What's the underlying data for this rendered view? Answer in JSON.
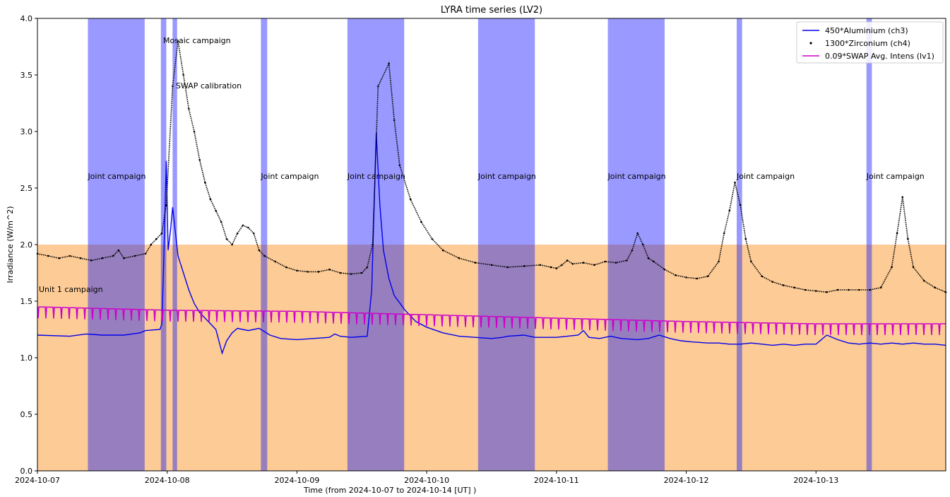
{
  "chart_data": {
    "type": "line",
    "title": "LYRA time series (LV2)",
    "xlabel": "Time (from 2024-10-07 to 2024-10-14 [UT] )",
    "ylabel": "Irradiance (W/m^2)",
    "xlim": [
      "2024-10-07 00:00",
      "2024-10-14 00:00"
    ],
    "ylim": [
      0.0,
      4.0
    ],
    "x_ticks": [
      "2024-10-07",
      "2024-10-08",
      "2024-10-09",
      "2024-10-10",
      "2024-10-11",
      "2024-10-12",
      "2024-10-13"
    ],
    "y_ticks": [
      "0.0",
      "0.5",
      "1.0",
      "1.5",
      "2.0",
      "2.5",
      "3.0",
      "3.5",
      "4.0"
    ],
    "grid": false,
    "legend_position": "top-right",
    "colors": {
      "campaign_band": "#9999ff",
      "unit1_band": "#fdcb95",
      "overlap": "#977fbf",
      "aluminium": "#0000ee",
      "zirconium": "#000000",
      "swap": "#cc00cc"
    },
    "series": [
      {
        "name": "450*Aluminium (ch3)",
        "style": "line",
        "points": [
          [
            "2024-10-07 00:00",
            1.2
          ],
          [
            "2024-10-07 06:00",
            1.19
          ],
          [
            "2024-10-07 09:00",
            1.21
          ],
          [
            "2024-10-07 12:00",
            1.2
          ],
          [
            "2024-10-07 16:00",
            1.2
          ],
          [
            "2024-10-07 19:00",
            1.22
          ],
          [
            "2024-10-07 20:00",
            1.24
          ],
          [
            "2024-10-07 22:40",
            1.25
          ],
          [
            "2024-10-07 23:00",
            1.3
          ],
          [
            "2024-10-07 23:20",
            1.8
          ],
          [
            "2024-10-07 23:50",
            2.74
          ],
          [
            "2024-10-08 00:10",
            1.95
          ],
          [
            "2024-10-08 00:40",
            2.15
          ],
          [
            "2024-10-08 01:00",
            2.33
          ],
          [
            "2024-10-08 02:00",
            1.9
          ],
          [
            "2024-10-08 03:00",
            1.75
          ],
          [
            "2024-10-08 04:00",
            1.6
          ],
          [
            "2024-10-08 05:00",
            1.48
          ],
          [
            "2024-10-08 06:00",
            1.4
          ],
          [
            "2024-10-08 08:00",
            1.3
          ],
          [
            "2024-10-08 09:00",
            1.25
          ],
          [
            "2024-10-08 10:10",
            1.04
          ],
          [
            "2024-10-08 11:00",
            1.15
          ],
          [
            "2024-10-08 12:00",
            1.22
          ],
          [
            "2024-10-08 13:00",
            1.26
          ],
          [
            "2024-10-08 15:00",
            1.24
          ],
          [
            "2024-10-08 17:00",
            1.26
          ],
          [
            "2024-10-08 19:00",
            1.2
          ],
          [
            "2024-10-08 21:00",
            1.17
          ],
          [
            "2024-10-09 00:00",
            1.16
          ],
          [
            "2024-10-09 03:00",
            1.17
          ],
          [
            "2024-10-09 06:00",
            1.18
          ],
          [
            "2024-10-09 07:00",
            1.21
          ],
          [
            "2024-10-09 08:00",
            1.19
          ],
          [
            "2024-10-09 10:00",
            1.18
          ],
          [
            "2024-10-09 13:00",
            1.19
          ],
          [
            "2024-10-09 13:50",
            1.6
          ],
          [
            "2024-10-09 14:40",
            2.99
          ],
          [
            "2024-10-09 15:20",
            2.35
          ],
          [
            "2024-10-09 16:00",
            1.95
          ],
          [
            "2024-10-09 17:00",
            1.7
          ],
          [
            "2024-10-09 18:00",
            1.55
          ],
          [
            "2024-10-09 20:00",
            1.42
          ],
          [
            "2024-10-09 22:00",
            1.32
          ],
          [
            "2024-10-10 00:00",
            1.27
          ],
          [
            "2024-10-10 03:00",
            1.22
          ],
          [
            "2024-10-10 06:00",
            1.19
          ],
          [
            "2024-10-10 09:00",
            1.18
          ],
          [
            "2024-10-10 12:00",
            1.17
          ],
          [
            "2024-10-10 14:00",
            1.18
          ],
          [
            "2024-10-10 15:00",
            1.19
          ],
          [
            "2024-10-10 18:00",
            1.2
          ],
          [
            "2024-10-10 20:00",
            1.18
          ],
          [
            "2024-10-10 22:00",
            1.18
          ],
          [
            "2024-10-11 00:00",
            1.18
          ],
          [
            "2024-10-11 02:00",
            1.19
          ],
          [
            "2024-10-11 04:00",
            1.2
          ],
          [
            "2024-10-11 05:00",
            1.24
          ],
          [
            "2024-10-11 06:00",
            1.18
          ],
          [
            "2024-10-11 08:00",
            1.17
          ],
          [
            "2024-10-11 10:00",
            1.19
          ],
          [
            "2024-10-11 12:00",
            1.17
          ],
          [
            "2024-10-11 15:00",
            1.16
          ],
          [
            "2024-10-11 17:00",
            1.17
          ],
          [
            "2024-10-11 19:00",
            1.2
          ],
          [
            "2024-10-11 21:00",
            1.17
          ],
          [
            "2024-10-11 23:00",
            1.15
          ],
          [
            "2024-10-12 01:00",
            1.14
          ],
          [
            "2024-10-12 04:00",
            1.13
          ],
          [
            "2024-10-12 06:00",
            1.13
          ],
          [
            "2024-10-12 08:00",
            1.12
          ],
          [
            "2024-10-12 10:00",
            1.12
          ],
          [
            "2024-10-12 12:00",
            1.13
          ],
          [
            "2024-10-12 14:00",
            1.12
          ],
          [
            "2024-10-12 16:00",
            1.11
          ],
          [
            "2024-10-12 18:00",
            1.12
          ],
          [
            "2024-10-12 20:00",
            1.11
          ],
          [
            "2024-10-12 22:00",
            1.12
          ],
          [
            "2024-10-13 00:00",
            1.12
          ],
          [
            "2024-10-13 02:00",
            1.2
          ],
          [
            "2024-10-13 04:00",
            1.16
          ],
          [
            "2024-10-13 06:00",
            1.13
          ],
          [
            "2024-10-13 08:00",
            1.12
          ],
          [
            "2024-10-13 10:00",
            1.13
          ],
          [
            "2024-10-13 12:00",
            1.12
          ],
          [
            "2024-10-13 14:00",
            1.13
          ],
          [
            "2024-10-13 16:00",
            1.12
          ],
          [
            "2024-10-13 18:00",
            1.13
          ],
          [
            "2024-10-13 20:00",
            1.12
          ],
          [
            "2024-10-13 22:00",
            1.12
          ],
          [
            "2024-10-14 00:00",
            1.11
          ]
        ]
      },
      {
        "name": "1300*Zirconium (ch4)",
        "style": "dots",
        "points": [
          [
            "2024-10-07 00:00",
            1.92
          ],
          [
            "2024-10-07 02:00",
            1.9
          ],
          [
            "2024-10-07 04:00",
            1.88
          ],
          [
            "2024-10-07 06:00",
            1.9
          ],
          [
            "2024-10-07 08:00",
            1.88
          ],
          [
            "2024-10-07 10:00",
            1.86
          ],
          [
            "2024-10-07 12:00",
            1.88
          ],
          [
            "2024-10-07 14:00",
            1.9
          ],
          [
            "2024-10-07 15:00",
            1.95
          ],
          [
            "2024-10-07 16:00",
            1.88
          ],
          [
            "2024-10-07 18:00",
            1.9
          ],
          [
            "2024-10-07 20:00",
            1.92
          ],
          [
            "2024-10-07 21:00",
            2.0
          ],
          [
            "2024-10-07 22:00",
            2.05
          ],
          [
            "2024-10-07 23:00",
            2.1
          ],
          [
            "2024-10-07 23:50",
            2.35
          ],
          [
            "2024-10-08 01:00",
            3.4
          ],
          [
            "2024-10-08 02:00",
            3.8
          ],
          [
            "2024-10-08 03:00",
            3.5
          ],
          [
            "2024-10-08 04:00",
            3.2
          ],
          [
            "2024-10-08 05:00",
            3.0
          ],
          [
            "2024-10-08 06:00",
            2.75
          ],
          [
            "2024-10-08 07:00",
            2.55
          ],
          [
            "2024-10-08 08:00",
            2.4
          ],
          [
            "2024-10-08 09:00",
            2.3
          ],
          [
            "2024-10-08 10:00",
            2.2
          ],
          [
            "2024-10-08 11:00",
            2.05
          ],
          [
            "2024-10-08 12:00",
            2.0
          ],
          [
            "2024-10-08 13:00",
            2.1
          ],
          [
            "2024-10-08 14:00",
            2.17
          ],
          [
            "2024-10-08 15:00",
            2.15
          ],
          [
            "2024-10-08 16:00",
            2.1
          ],
          [
            "2024-10-08 17:00",
            1.95
          ],
          [
            "2024-10-08 18:00",
            1.9
          ],
          [
            "2024-10-08 20:00",
            1.85
          ],
          [
            "2024-10-08 22:00",
            1.8
          ],
          [
            "2024-10-09 00:00",
            1.77
          ],
          [
            "2024-10-09 02:00",
            1.76
          ],
          [
            "2024-10-09 04:00",
            1.76
          ],
          [
            "2024-10-09 06:00",
            1.78
          ],
          [
            "2024-10-09 08:00",
            1.75
          ],
          [
            "2024-10-09 10:00",
            1.74
          ],
          [
            "2024-10-09 12:00",
            1.75
          ],
          [
            "2024-10-09 13:00",
            1.8
          ],
          [
            "2024-10-09 14:00",
            2.0
          ],
          [
            "2024-10-09 15:00",
            3.4
          ],
          [
            "2024-10-09 17:00",
            3.6
          ],
          [
            "2024-10-09 18:00",
            3.1
          ],
          [
            "2024-10-09 19:00",
            2.7
          ],
          [
            "2024-10-09 21:00",
            2.4
          ],
          [
            "2024-10-09 23:00",
            2.2
          ],
          [
            "2024-10-10 01:00",
            2.05
          ],
          [
            "2024-10-10 03:00",
            1.95
          ],
          [
            "2024-10-10 06:00",
            1.88
          ],
          [
            "2024-10-10 09:00",
            1.84
          ],
          [
            "2024-10-10 12:00",
            1.82
          ],
          [
            "2024-10-10 15:00",
            1.8
          ],
          [
            "2024-10-10 18:00",
            1.81
          ],
          [
            "2024-10-10 21:00",
            1.82
          ],
          [
            "2024-10-10 23:00",
            1.8
          ],
          [
            "2024-10-11 00:00",
            1.79
          ],
          [
            "2024-10-11 01:00",
            1.82
          ],
          [
            "2024-10-11 02:00",
            1.86
          ],
          [
            "2024-10-11 03:00",
            1.83
          ],
          [
            "2024-10-11 05:00",
            1.84
          ],
          [
            "2024-10-11 07:00",
            1.82
          ],
          [
            "2024-10-11 09:00",
            1.85
          ],
          [
            "2024-10-11 11:00",
            1.84
          ],
          [
            "2024-10-11 13:00",
            1.86
          ],
          [
            "2024-10-11 14:00",
            1.95
          ],
          [
            "2024-10-11 15:00",
            2.1
          ],
          [
            "2024-10-11 16:00",
            2.0
          ],
          [
            "2024-10-11 17:00",
            1.88
          ],
          [
            "2024-10-11 18:00",
            1.85
          ],
          [
            "2024-10-11 20:00",
            1.78
          ],
          [
            "2024-10-11 22:00",
            1.73
          ],
          [
            "2024-10-12 00:00",
            1.71
          ],
          [
            "2024-10-12 02:00",
            1.7
          ],
          [
            "2024-10-12 04:00",
            1.72
          ],
          [
            "2024-10-12 06:00",
            1.85
          ],
          [
            "2024-10-12 07:00",
            2.1
          ],
          [
            "2024-10-12 08:00",
            2.3
          ],
          [
            "2024-10-12 09:00",
            2.55
          ],
          [
            "2024-10-12 10:00",
            2.35
          ],
          [
            "2024-10-12 11:00",
            2.05
          ],
          [
            "2024-10-12 12:00",
            1.85
          ],
          [
            "2024-10-12 14:00",
            1.72
          ],
          [
            "2024-10-12 16:00",
            1.67
          ],
          [
            "2024-10-12 18:00",
            1.64
          ],
          [
            "2024-10-12 20:00",
            1.62
          ],
          [
            "2024-10-12 22:00",
            1.6
          ],
          [
            "2024-10-13 00:00",
            1.59
          ],
          [
            "2024-10-13 02:00",
            1.58
          ],
          [
            "2024-10-13 04:00",
            1.6
          ],
          [
            "2024-10-13 06:00",
            1.6
          ],
          [
            "2024-10-13 08:00",
            1.6
          ],
          [
            "2024-10-13 10:00",
            1.6
          ],
          [
            "2024-10-13 12:00",
            1.62
          ],
          [
            "2024-10-13 14:00",
            1.8
          ],
          [
            "2024-10-13 15:00",
            2.1
          ],
          [
            "2024-10-13 16:00",
            2.42
          ],
          [
            "2024-10-13 17:00",
            2.05
          ],
          [
            "2024-10-13 18:00",
            1.8
          ],
          [
            "2024-10-13 20:00",
            1.68
          ],
          [
            "2024-10-13 22:00",
            1.62
          ],
          [
            "2024-10-14 00:00",
            1.58
          ]
        ]
      },
      {
        "name": "0.09*SWAP Avg. Intens (lv1)",
        "style": "line",
        "points": [
          [
            "2024-10-07 00:00",
            1.45
          ],
          [
            "2024-10-08 00:00",
            1.42
          ],
          [
            "2024-10-09 00:00",
            1.41
          ],
          [
            "2024-10-10 00:00",
            1.38
          ],
          [
            "2024-10-11 00:00",
            1.35
          ],
          [
            "2024-10-12 00:00",
            1.32
          ],
          [
            "2024-10-13 00:00",
            1.3
          ],
          [
            "2024-10-14 00:00",
            1.3
          ]
        ]
      }
    ],
    "campaign_bands": [
      {
        "label": "Joint campaign",
        "start": "2024-10-07 09:20",
        "end": "2024-10-07 19:50"
      },
      {
        "label": "",
        "start": "2024-10-07 22:50",
        "end": "2024-10-07 23:50"
      },
      {
        "label": "Joint campaign",
        "start": "2024-10-08 17:20",
        "end": "2024-10-08 18:30"
      },
      {
        "label": "Joint campaign",
        "start": "2024-10-09 09:20",
        "end": "2024-10-09 19:50"
      },
      {
        "label": "Joint campaign",
        "start": "2024-10-10 09:30",
        "end": "2024-10-10 20:00"
      },
      {
        "label": "Joint campaign",
        "start": "2024-10-11 09:30",
        "end": "2024-10-11 20:00"
      },
      {
        "label": "Joint campaign",
        "start": "2024-10-12 09:20",
        "end": "2024-10-12 10:20"
      },
      {
        "label": "Joint campaign",
        "start": "2024-10-13 09:20",
        "end": "2024-10-13 10:20"
      },
      {
        "label": "",
        "start": "2024-10-08 01:00",
        "end": "2024-10-08 01:50"
      }
    ],
    "unit1_band": {
      "label": "Unit 1 campaign",
      "ymax": 2.0
    },
    "annotations": [
      {
        "text": "Mosaic campaign",
        "x": "2024-10-07 23:00",
        "y": 3.78
      },
      {
        "text": "SWAP calibration",
        "x": "2024-10-08 01:20",
        "y": 3.38
      },
      {
        "text": "Unit 1 campaign",
        "x": "2024-10-07 00:00",
        "y": 1.58
      }
    ]
  }
}
